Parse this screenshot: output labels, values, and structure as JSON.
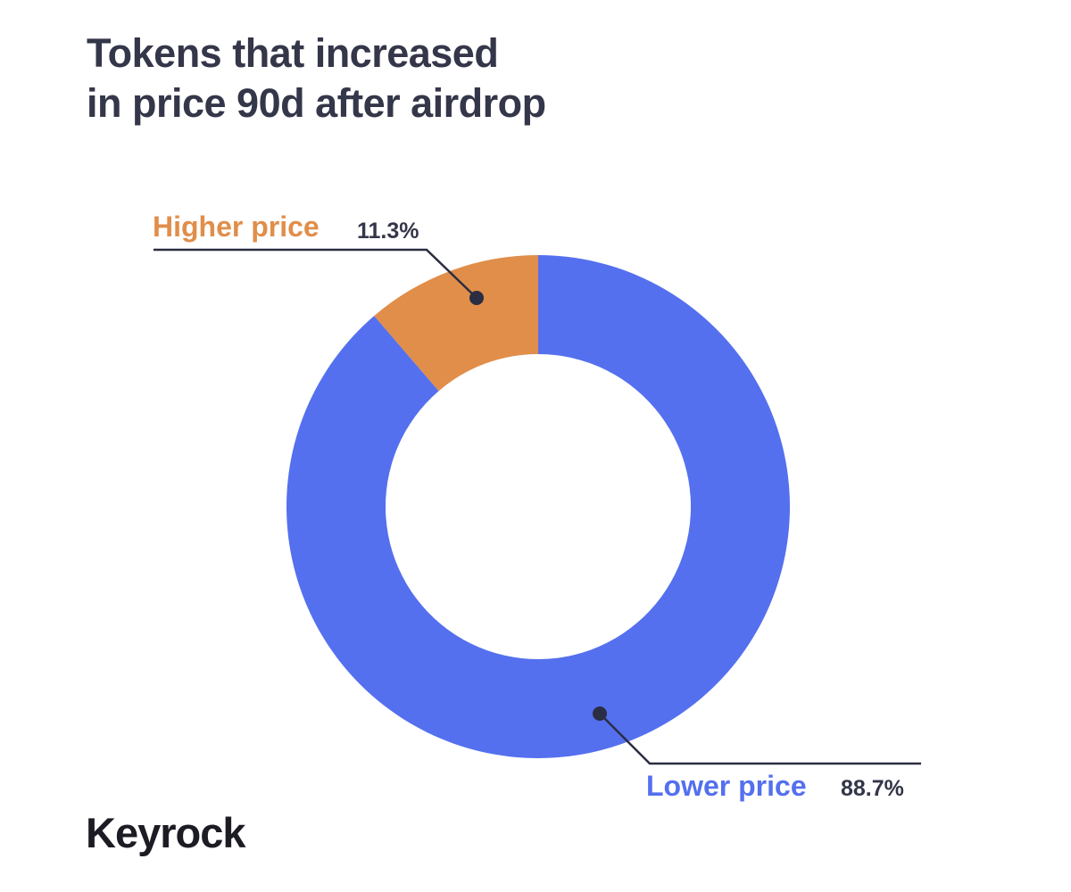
{
  "chart_data": {
    "type": "pie",
    "variant": "donut",
    "title_lines": [
      "Tokens that increased",
      "in price 90d after airdrop"
    ],
    "slices": [
      {
        "name": "Higher price",
        "value": 11.3,
        "value_label": "11.3%",
        "color": "#e08e4a"
      },
      {
        "name": "Lower price",
        "value": 88.7,
        "value_label": "88.7%",
        "color": "#5470ee"
      }
    ],
    "legend": "callouts"
  },
  "brand": {
    "logo_text": "Keyrock"
  },
  "colors": {
    "text": "#343649",
    "leader": "#2b2d42"
  }
}
